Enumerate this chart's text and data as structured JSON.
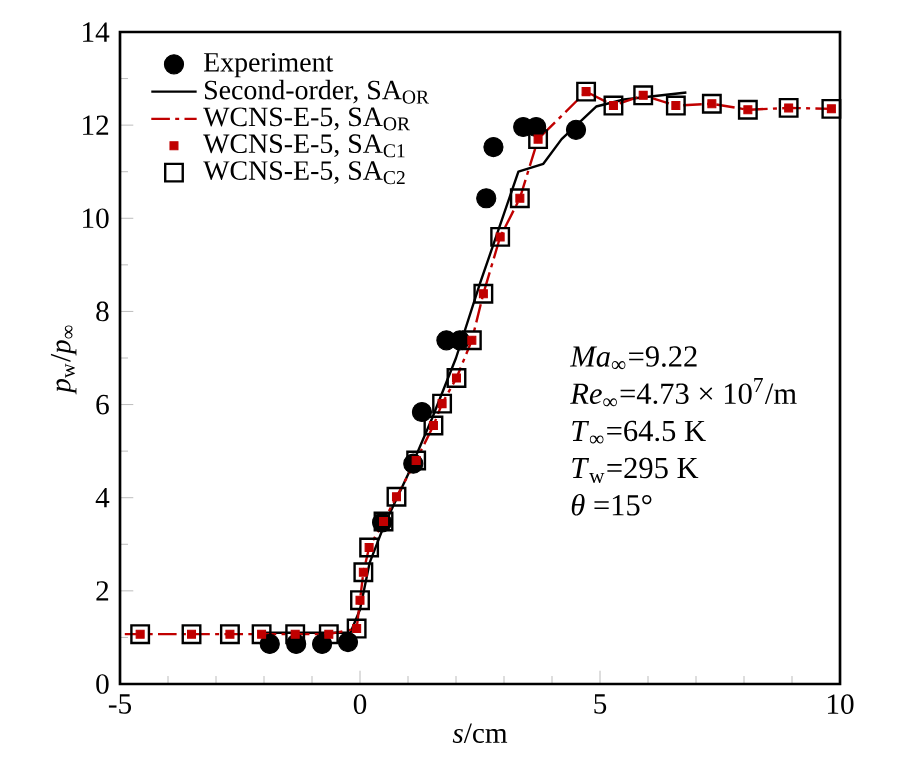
{
  "chart_data": {
    "type": "scatter",
    "xlabel": "*s*/cm",
    "ylabel": "*p*$_{w}$/*p*$_{∞}$",
    "xlim": [
      -5,
      10
    ],
    "ylim": [
      0,
      14
    ],
    "xticks": [
      -5,
      0,
      5,
      10
    ],
    "yticks": [
      0,
      2,
      4,
      6,
      8,
      10,
      12,
      14
    ],
    "legend": "top left",
    "grid": false,
    "series": [
      {
        "name": "Experiment",
        "marker": "circle",
        "color": "#000000",
        "x": [
          -1.88,
          -1.33,
          -0.79,
          -0.25,
          0.46,
          1.11,
          1.29,
          1.8,
          2.08,
          2.63,
          2.78,
          3.4,
          3.67,
          4.5
        ],
        "values": [
          0.86,
          0.86,
          0.86,
          0.9,
          3.47,
          4.73,
          5.84,
          7.38,
          7.38,
          10.43,
          11.53,
          11.96,
          11.96,
          11.9
        ]
      },
      {
        "name": "Second-order, SA$_{OR}$",
        "type": "line",
        "line_style": "solid",
        "color": "#000000",
        "x": [
          -2,
          -0.2,
          0,
          0.2,
          0.5,
          1,
          1.5,
          2,
          2.5,
          3,
          3.3,
          3.82,
          4.2,
          4.92,
          5.5,
          6.8
        ],
        "values": [
          1.1,
          1.1,
          1.6,
          2.6,
          3.4,
          4.5,
          5.7,
          7,
          8.6,
          10.1,
          11,
          11.17,
          11.7,
          12.4,
          12.55,
          12.7
        ]
      },
      {
        "name": "WCNS-E-5, SA$_{OR}$",
        "type": "line",
        "line_style": "dashed",
        "color": "#c00000",
        "x": [
          -4.9,
          -3.51,
          -2.71,
          -2.05,
          -1.35,
          -0.65,
          -0.07,
          0,
          0.07,
          0.19,
          0.49,
          0.76,
          1.17,
          1.53,
          1.71,
          2.01,
          2.33,
          2.57,
          2.92,
          3.33,
          3.71,
          4.71,
          5.28,
          5.9,
          6.58,
          7.33,
          8.08,
          8.93,
          9.82
        ],
        "values": [
          1.07,
          1.07,
          1.07,
          1.07,
          1.07,
          1.07,
          1.19,
          1.8,
          2.4,
          2.93,
          3.49,
          4.02,
          4.8,
          5.55,
          6.02,
          6.57,
          7.38,
          8.38,
          9.6,
          10.43,
          11.7,
          12.72,
          12.42,
          12.64,
          12.42,
          12.46,
          12.33,
          12.37,
          12.35
        ]
      },
      {
        "name": "WCNS-E-5, SA$_{C1}$",
        "marker": "square",
        "color": "#c00000",
        "x": [
          -4.58,
          -3.51,
          -2.71,
          -2.05,
          -1.35,
          -0.65,
          -0.07,
          0,
          0.07,
          0.19,
          0.49,
          0.76,
          1.17,
          1.53,
          1.71,
          2.01,
          2.33,
          2.57,
          2.92,
          3.33,
          3.71,
          4.71,
          5.28,
          5.9,
          6.58,
          7.33,
          8.08,
          8.93,
          9.82
        ],
        "values": [
          1.07,
          1.07,
          1.07,
          1.07,
          1.07,
          1.07,
          1.19,
          1.8,
          2.4,
          2.93,
          3.49,
          4.02,
          4.8,
          5.55,
          6.02,
          6.57,
          7.38,
          8.38,
          9.6,
          10.43,
          11.7,
          12.72,
          12.42,
          12.64,
          12.42,
          12.46,
          12.33,
          12.37,
          12.35
        ]
      },
      {
        "name": "WCNS-E-5, SA$_{C2}$",
        "marker": "square_open",
        "color": "#000000",
        "x": [
          -4.58,
          -3.51,
          -2.71,
          -2.05,
          -1.35,
          -0.65,
          -0.07,
          0,
          0.07,
          0.19,
          0.49,
          0.76,
          1.17,
          1.53,
          1.71,
          2.01,
          2.33,
          2.57,
          2.92,
          3.33,
          3.71,
          4.71,
          5.28,
          5.9,
          6.58,
          7.33,
          8.08,
          8.93,
          9.82
        ],
        "values": [
          1.07,
          1.07,
          1.07,
          1.07,
          1.07,
          1.07,
          1.19,
          1.8,
          2.4,
          2.93,
          3.49,
          4.02,
          4.8,
          5.55,
          6.02,
          6.57,
          7.38,
          8.38,
          9.6,
          10.43,
          11.7,
          12.72,
          12.42,
          12.64,
          12.42,
          12.46,
          12.33,
          12.37,
          12.35
        ]
      }
    ],
    "annotations": [
      "*Ma*$_{∞}$=9.22",
      "*Re*$_{∞}$=4.73 × 10$^{7}$/m",
      "*T*$_{∞}$=64.5 K",
      "*T*$_{w}$=295 K",
      "*θ* =15°"
    ]
  }
}
